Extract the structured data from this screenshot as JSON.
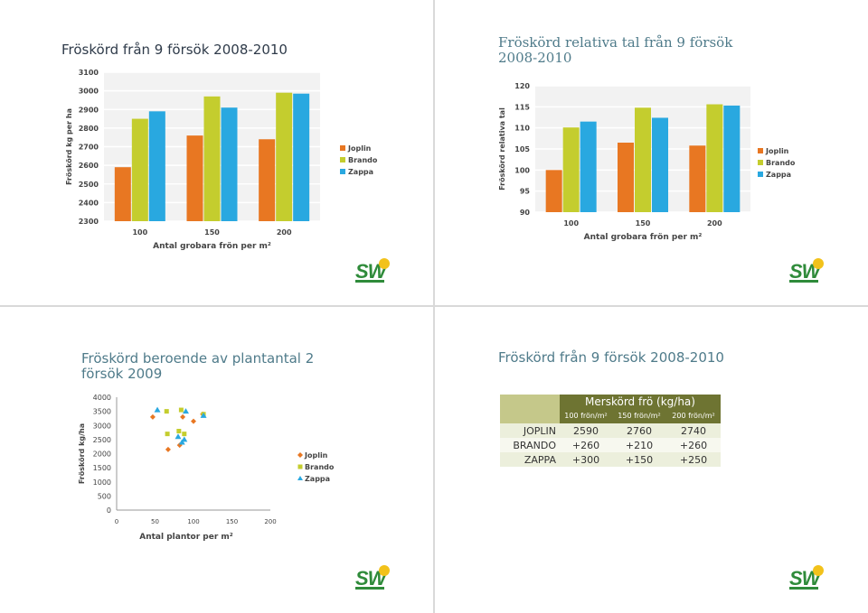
{
  "slides": {
    "s1": {
      "title": "Fröskörd från 9 försök 2008-2010"
    },
    "s2": {
      "title": "Fröskörd relativa tal från 9 försök 2008-2010"
    },
    "s3": {
      "title": "Fröskörd beroende av plantantal 2 försök 2009"
    },
    "s4": {
      "title": "Fröskörd från 9 försök 2008-2010"
    }
  },
  "logo": {
    "text": "SW",
    "colors": {
      "green": "#2f8b3a",
      "yellow": "#f2c21b"
    }
  },
  "colors": {
    "Joplin": "#e87722",
    "Brando": "#c4cd2e",
    "Zappa": "#29a8e0"
  },
  "chart_data": [
    {
      "type": "bar",
      "categories": [
        "100",
        "150",
        "200"
      ],
      "series": [
        {
          "name": "Joplin",
          "values": [
            2590,
            2760,
            2740
          ]
        },
        {
          "name": "Brando",
          "values": [
            2850,
            2970,
            2990
          ]
        },
        {
          "name": "Zappa",
          "values": [
            2890,
            2910,
            2985
          ]
        }
      ],
      "title": "",
      "xlabel": "Antal grobara frön per m²",
      "ylabel": "Fröskörd kg per ha",
      "ylim": [
        2300,
        3100
      ],
      "yticks": [
        "2300",
        "2400",
        "2500",
        "2600",
        "2700",
        "2800",
        "2900",
        "3000",
        "3100"
      ],
      "grid": true,
      "legend": "right"
    },
    {
      "type": "bar",
      "categories": [
        "100",
        "150",
        "200"
      ],
      "series": [
        {
          "name": "Joplin",
          "values": [
            100,
            106.5,
            105.8
          ]
        },
        {
          "name": "Brando",
          "values": [
            110.1,
            114.8,
            115.6
          ]
        },
        {
          "name": "Zappa",
          "values": [
            111.5,
            112.4,
            115.3
          ]
        }
      ],
      "title": "",
      "xlabel": "Antal grobara frön per m²",
      "ylabel": "Fröskörd relativa tal",
      "ylim": [
        90,
        120
      ],
      "yticks": [
        "90",
        "95",
        "100",
        "105",
        "110",
        "115",
        "120"
      ],
      "grid": true,
      "legend": "right"
    },
    {
      "type": "scatter",
      "series": [
        {
          "name": "Joplin",
          "points": [
            [
              47,
              3300
            ],
            [
              67,
              2150
            ],
            [
              82,
              2300
            ],
            [
              86,
              3300
            ],
            [
              100,
              3150
            ],
            [
              112,
              3400
            ]
          ]
        },
        {
          "name": "Brando",
          "points": [
            [
              65,
              3500
            ],
            [
              66,
              2700
            ],
            [
              81,
              2800
            ],
            [
              84,
              3550
            ],
            [
              88,
              2700
            ],
            [
              113,
              3400
            ]
          ]
        },
        {
          "name": "Zappa",
          "points": [
            [
              53,
              3550
            ],
            [
              80,
              2600
            ],
            [
              85,
              2400
            ],
            [
              88,
              2500
            ],
            [
              90,
              3500
            ],
            [
              113,
              3350
            ]
          ]
        }
      ],
      "title": "",
      "xlabel": "Antal plantor per m²",
      "ylabel": "Fröskörd kg/ha",
      "xlim": [
        0,
        200
      ],
      "ylim": [
        0,
        4000
      ],
      "xticks": [
        "0",
        "50",
        "100",
        "150",
        "200"
      ],
      "yticks": [
        "0",
        "500",
        "1000",
        "1500",
        "2000",
        "2500",
        "3000",
        "3500",
        "4000"
      ],
      "grid": false,
      "legend": "right"
    },
    {
      "type": "table",
      "header": "Merskörd frö (kg/ha)",
      "columns": [
        "100 frön/m²",
        "150 frön/m²",
        "200 frön/m²"
      ],
      "rows": [
        {
          "label": "JOPLIN",
          "values": [
            "2590",
            "2760",
            "2740"
          ]
        },
        {
          "label": "BRANDO",
          "values": [
            "+260",
            "+210",
            "+260"
          ]
        },
        {
          "label": "ZAPPA",
          "values": [
            "+300",
            "+150",
            "+250"
          ]
        }
      ]
    }
  ]
}
